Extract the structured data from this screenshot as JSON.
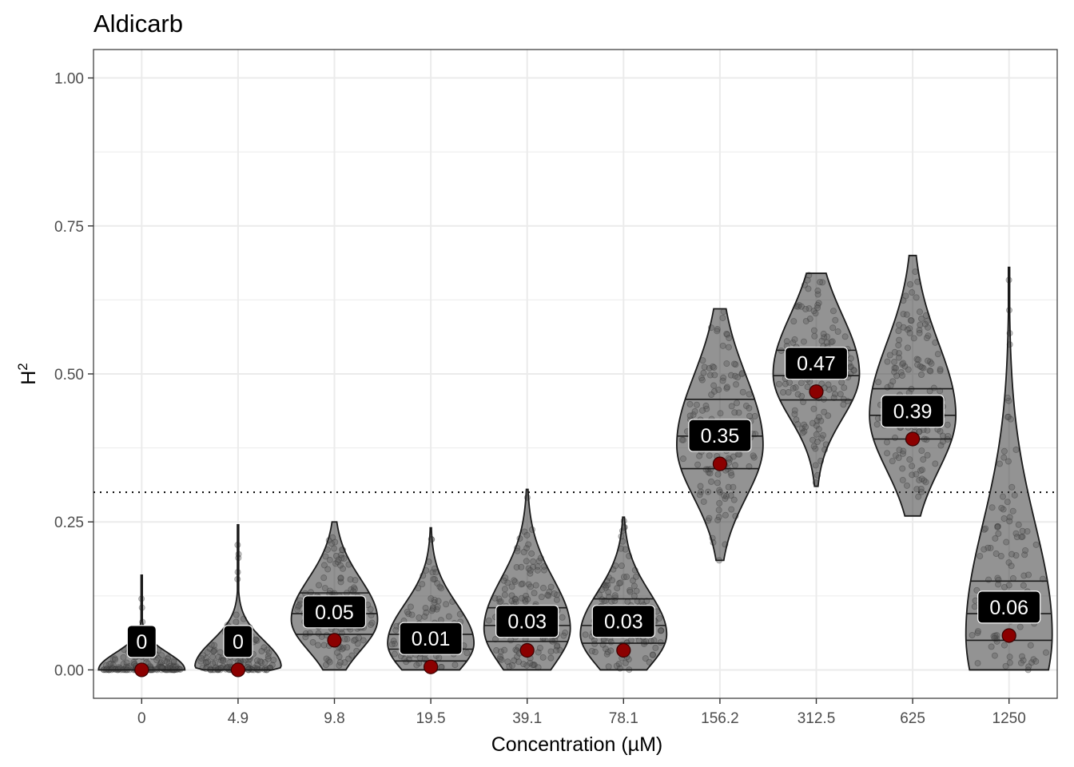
{
  "chart_data": {
    "type": "violin",
    "title": "Aldicarb",
    "xlabel": "Concentration (µM)",
    "ylabel": "H",
    "ylabel_superscript": "2",
    "categories": [
      "0",
      "4.9",
      "9.8",
      "19.5",
      "39.1",
      "78.1",
      "156.2",
      "312.5",
      "625",
      "1250"
    ],
    "ylim": [
      -0.048,
      1.048
    ],
    "yticks": [
      0.0,
      0.25,
      0.5,
      0.75,
      1.0
    ],
    "ytick_labels": [
      "0.00",
      "0.25",
      "0.50",
      "0.75",
      "1.00"
    ],
    "threshold": 0.3,
    "grid": true,
    "series": [
      {
        "category": "0",
        "point_value": 0.0,
        "label": "0",
        "label_y": 0.048,
        "min": 0.0,
        "max": 0.16,
        "quartiles": [],
        "mode": 0.0
      },
      {
        "category": "4.9",
        "point_value": 0.0,
        "label": "0",
        "label_y": 0.048,
        "min": 0.0,
        "max": 0.245,
        "quartiles": [],
        "mode": 0.005
      },
      {
        "category": "9.8",
        "point_value": 0.05,
        "label": "0.05",
        "label_y": 0.098,
        "min": 0.0,
        "max": 0.25,
        "quartiles": [
          0.06,
          0.095,
          0.13
        ],
        "mode": 0.085
      },
      {
        "category": "19.5",
        "point_value": 0.005,
        "label": "0.01",
        "label_y": 0.053,
        "min": 0.0,
        "max": 0.24,
        "quartiles": [
          0.015,
          0.035,
          0.06
        ],
        "mode": 0.045
      },
      {
        "category": "39.1",
        "point_value": 0.033,
        "label": "0.03",
        "label_y": 0.082,
        "min": 0.0,
        "max": 0.305,
        "quartiles": [
          0.048,
          0.075,
          0.105
        ],
        "mode": 0.07
      },
      {
        "category": "78.1",
        "point_value": 0.033,
        "label": "0.03",
        "label_y": 0.082,
        "min": 0.0,
        "max": 0.258,
        "quartiles": [
          0.045,
          0.075,
          0.12
        ],
        "mode": 0.06
      },
      {
        "category": "156.2",
        "point_value": 0.348,
        "label": "0.35",
        "label_y": 0.396,
        "min": 0.185,
        "max": 0.61,
        "quartiles": [
          0.34,
          0.395,
          0.457
        ],
        "mode": 0.38
      },
      {
        "category": "312.5",
        "point_value": 0.47,
        "label": "0.47",
        "label_y": 0.518,
        "min": 0.31,
        "max": 0.67,
        "quartiles": [
          0.456,
          0.497,
          0.54
        ],
        "mode": 0.5
      },
      {
        "category": "625",
        "point_value": 0.39,
        "label": "0.39",
        "label_y": 0.437,
        "min": 0.26,
        "max": 0.7,
        "quartiles": [
          0.39,
          0.43,
          0.475
        ],
        "mode": 0.43
      },
      {
        "category": "1250",
        "point_value": 0.058,
        "label": "0.06",
        "label_y": 0.106,
        "min": 0.0,
        "max": 0.68,
        "quartiles": [
          0.05,
          0.095,
          0.15
        ],
        "mode": 0.06
      }
    ]
  },
  "colors": {
    "violin_stroke": "#1a1a1a",
    "violin_fill": "#3a3a3a",
    "mean_point": "#8b0000",
    "label_box": "#000000",
    "label_text": "#ffffff",
    "grid": "#ebebeb",
    "panel_border": "#333333"
  }
}
